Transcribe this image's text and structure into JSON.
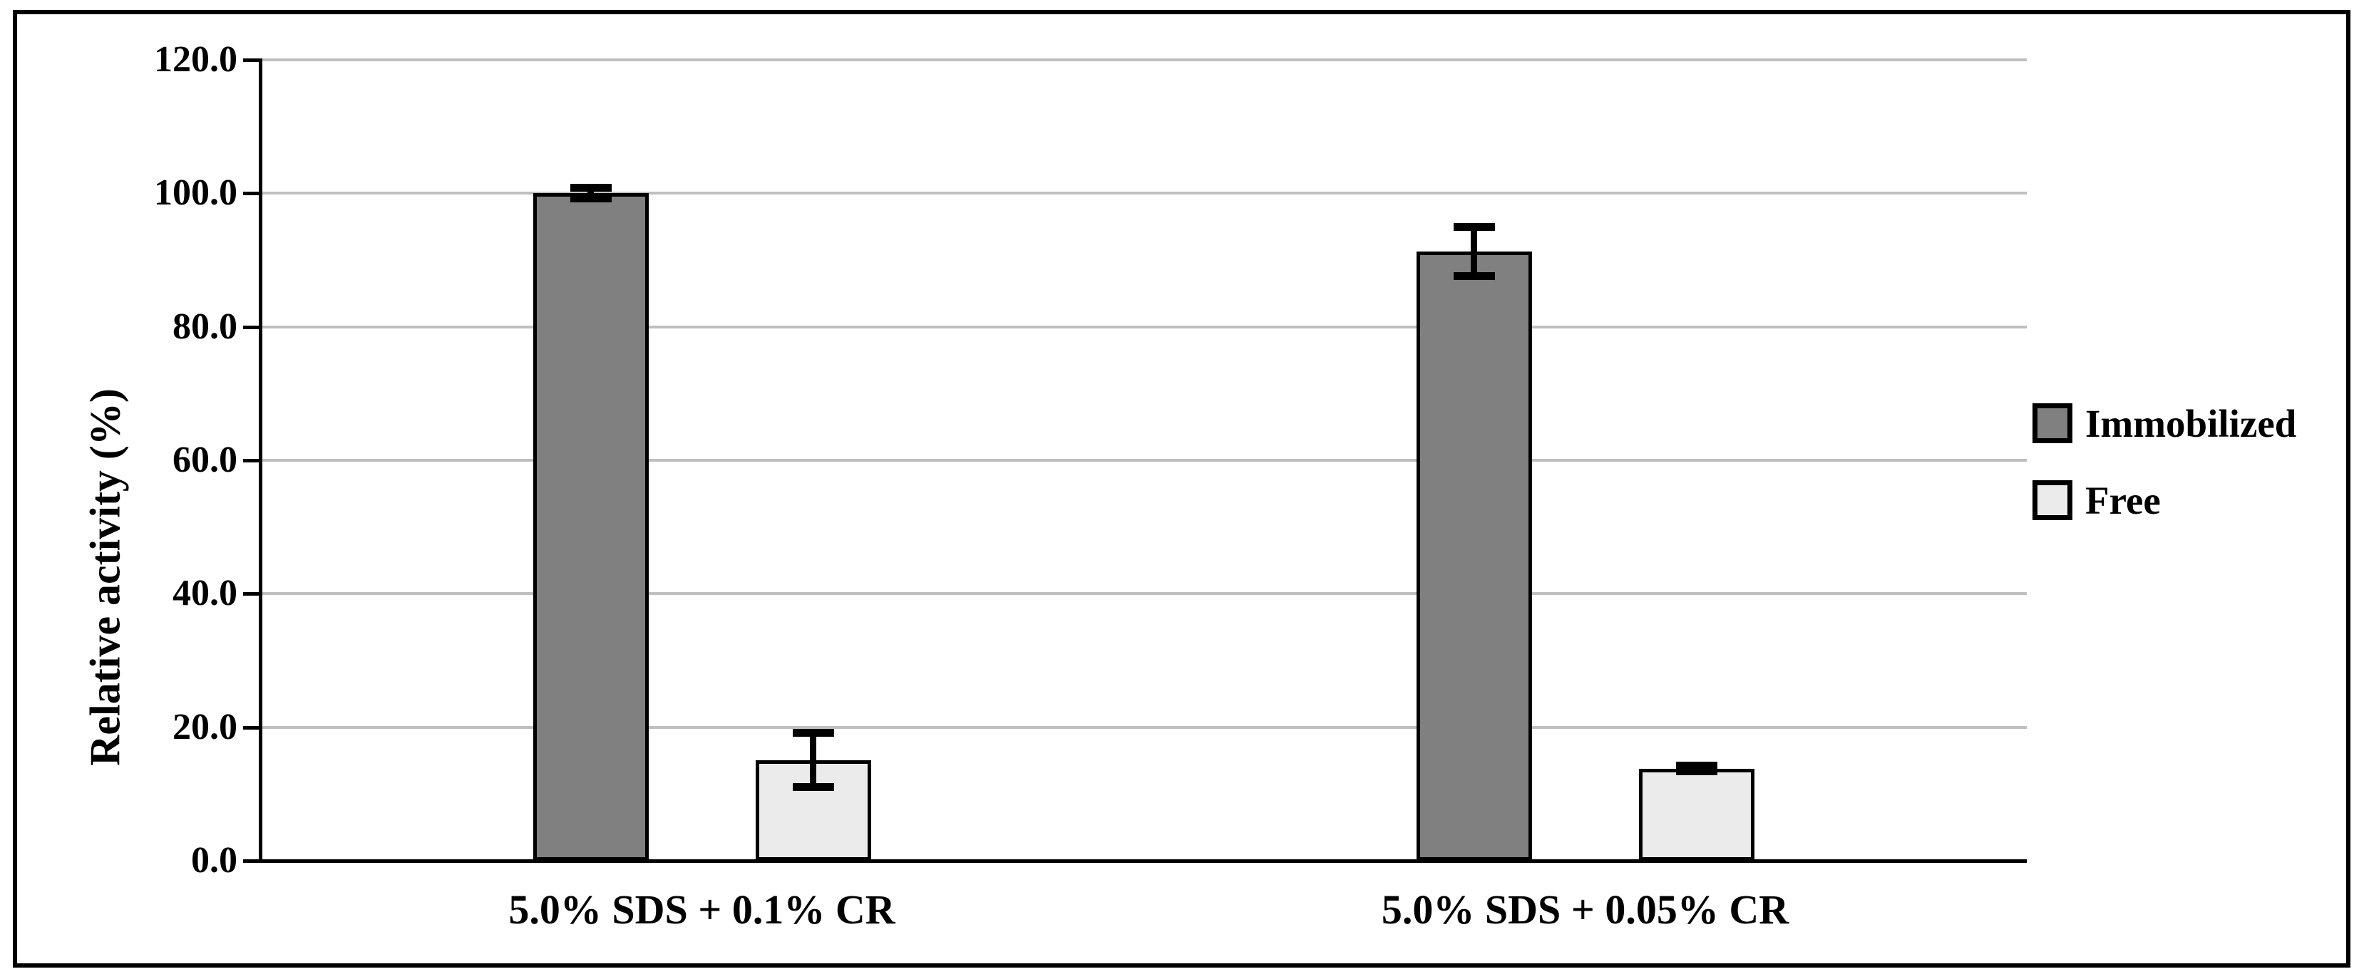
{
  "chart_data": {
    "type": "bar",
    "title": "",
    "categories": [
      "5.0% SDS + 0.1% CR",
      "5.0% SDS + 0.05% CR"
    ],
    "series": [
      {
        "name": "Immobilized",
        "color": "#808080",
        "values": [
          100.0,
          91.3
        ],
        "errors": [
          0.8,
          3.7
        ]
      },
      {
        "name": "Free",
        "color": "#ebebeb",
        "values": [
          15.1,
          13.8
        ],
        "errors": [
          4.1,
          0.4
        ]
      }
    ],
    "xlabel": "",
    "ylabel": "Relative activity (%)",
    "ylim": [
      0,
      120
    ],
    "ytick_step": 20,
    "ytick_labels": [
      "0.0",
      "20.0",
      "40.0",
      "60.0",
      "80.0",
      "100.0",
      "120.0"
    ],
    "grid": true,
    "legend_position": "right-middle",
    "error_bars": true
  },
  "colors": {
    "gridline": "#bfbfbf",
    "axis": "#000000",
    "frame": "#000000",
    "background": "#ffffff"
  }
}
